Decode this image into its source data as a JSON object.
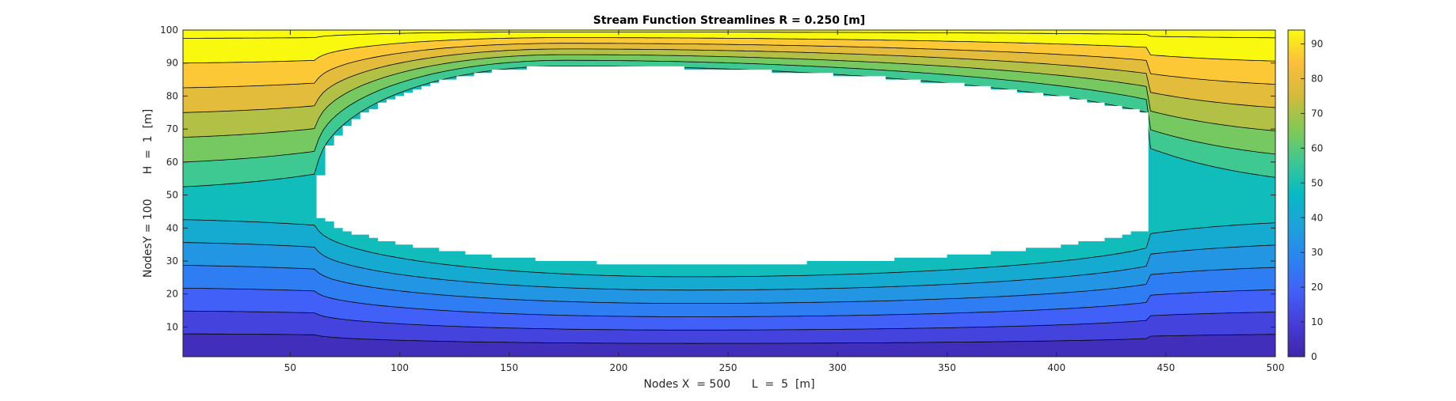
{
  "chart_data": {
    "type": "contour",
    "title": "Stream Function Streamlines R = 0.250 [m]",
    "xlabel": "Nodes X  = 500      L  =  5  [m]",
    "ylabel": "NodesY = 100       H  =  1  [m]",
    "xlim": [
      1,
      500
    ],
    "ylim": [
      1,
      100
    ],
    "x_ticks": [
      50,
      100,
      150,
      200,
      250,
      300,
      350,
      400,
      450,
      500
    ],
    "y_ticks": [
      10,
      20,
      30,
      40,
      50,
      60,
      70,
      80,
      90,
      100
    ],
    "colorbar": {
      "colormap": "parula",
      "limits": [
        0,
        94
      ],
      "ticks": [
        0,
        10,
        20,
        30,
        40,
        50,
        60,
        70,
        80,
        90
      ]
    },
    "contour_levels": [
      0,
      7.5,
      15,
      22.5,
      30,
      37.5,
      45,
      52.5,
      60,
      67.5,
      75,
      82.5,
      90,
      97.5
    ],
    "obstacle": {
      "shape": "ellipse-like airfoil",
      "color": "#ffffff",
      "x_range": [
        62,
        442
      ],
      "y_range": [
        29,
        89
      ],
      "flat_left_edge_y": [
        47,
        56
      ],
      "flat_right_edge_y": [
        44,
        64
      ]
    },
    "grid": false
  }
}
